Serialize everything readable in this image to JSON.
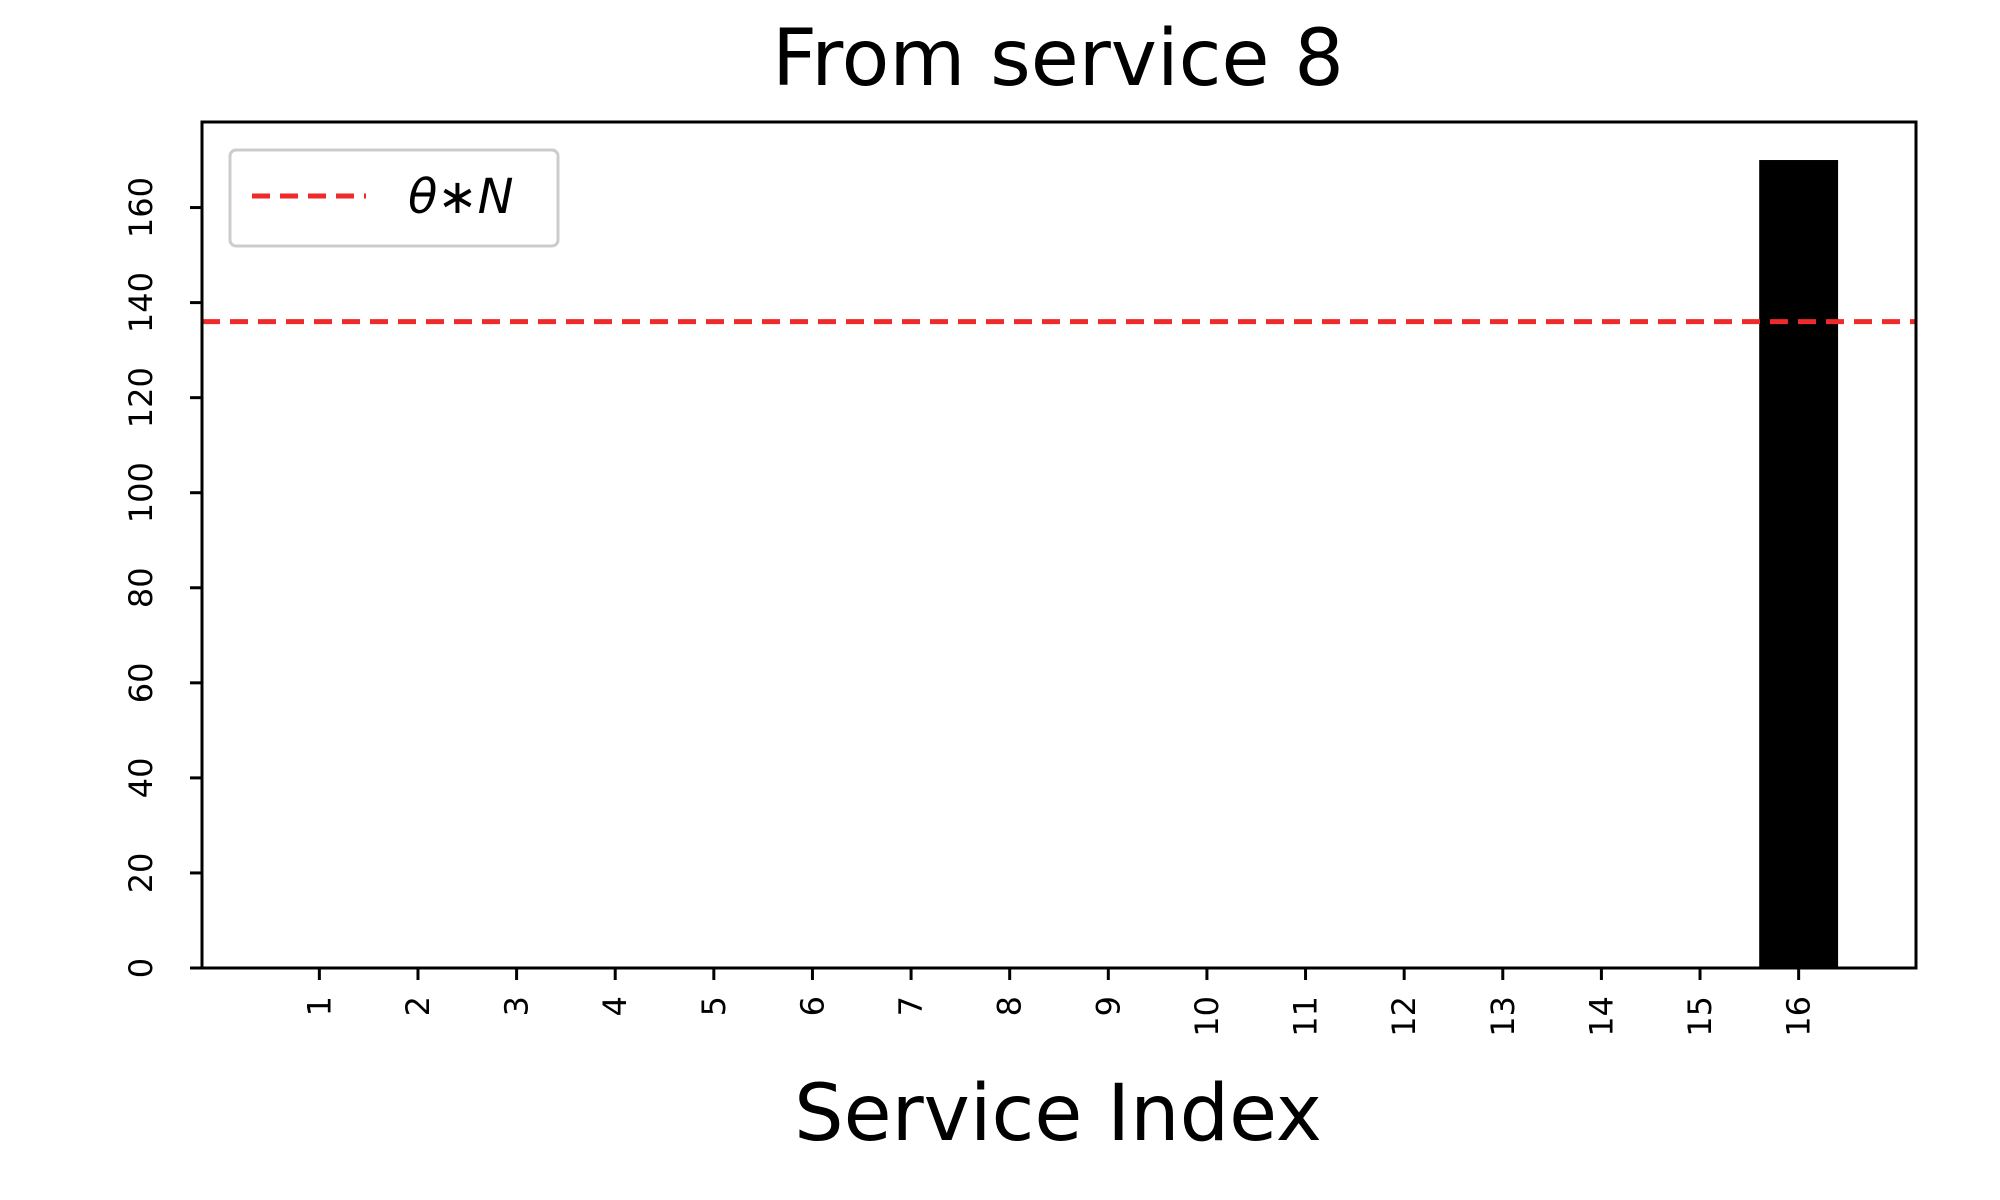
{
  "chart_data": {
    "type": "bar",
    "title": "From service 8",
    "xlabel": "Service Index",
    "ylabel": "",
    "categories": [
      "1",
      "2",
      "3",
      "4",
      "5",
      "6",
      "7",
      "8",
      "9",
      "10",
      "11",
      "12",
      "13",
      "14",
      "15",
      "16"
    ],
    "values": [
      0,
      0,
      0,
      0,
      0,
      0,
      0,
      0,
      0,
      0,
      0,
      0,
      0,
      0,
      0,
      170
    ],
    "yticks": [
      0,
      20,
      40,
      60,
      80,
      100,
      120,
      140,
      160
    ],
    "ylim": [
      0,
      178
    ],
    "threshold": {
      "label": "θ∗N",
      "value": 136,
      "color": "#ee2a2a",
      "style": "dashed"
    },
    "bar_color": "#000000",
    "legend_position": "top-left",
    "grid": false
  }
}
